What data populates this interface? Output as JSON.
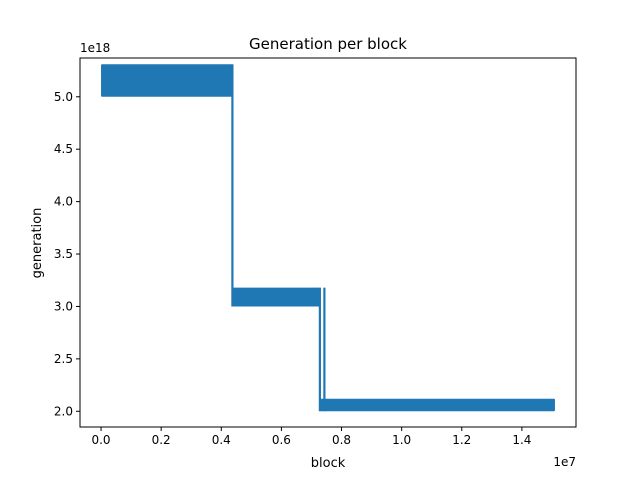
{
  "chart_data": {
    "type": "line",
    "title": "Generation per block",
    "xlabel": "block",
    "ylabel": "generation",
    "x_offset_label": "1e7",
    "y_offset_label": "1e18",
    "xlim": [
      -700000,
      15800000
    ],
    "ylim": [
      1.85e+18,
      5.37e+18
    ],
    "x_ticks": [
      0,
      2000000,
      4000000,
      6000000,
      8000000,
      10000000,
      12000000,
      14000000
    ],
    "x_tick_labels": [
      "0.0",
      "0.2",
      "0.4",
      "0.6",
      "0.8",
      "1.0",
      "1.2",
      "1.4"
    ],
    "y_ticks": [
      2e+18,
      2.5e+18,
      3e+18,
      3.5e+18,
      4e+18,
      4.5e+18,
      5e+18
    ],
    "y_tick_labels": [
      "2.0",
      "2.5",
      "3.0",
      "3.5",
      "4.0",
      "4.5",
      "5.0"
    ],
    "grid": false,
    "series": [
      {
        "color": "#1f77b4",
        "bands": [
          {
            "x": [
              0,
              4370000
            ],
            "y": [
              5e+18,
              5.31e+18
            ]
          },
          {
            "x": [
              4370000,
              7280000
            ],
            "y": [
              3e+18,
              3.18e+18
            ]
          },
          {
            "x": [
              7280000,
              15100000
            ],
            "y": [
              2e+18,
              2.12e+18
            ]
          }
        ],
        "transitions": [
          {
            "x": 4370000,
            "y": [
              3e+18,
              5.31e+18
            ]
          },
          {
            "x": 7280000,
            "y": [
              2e+18,
              3.18e+18
            ]
          },
          {
            "x": 7430000,
            "y": [
              2e+18,
              3.18e+18
            ]
          }
        ]
      }
    ]
  }
}
